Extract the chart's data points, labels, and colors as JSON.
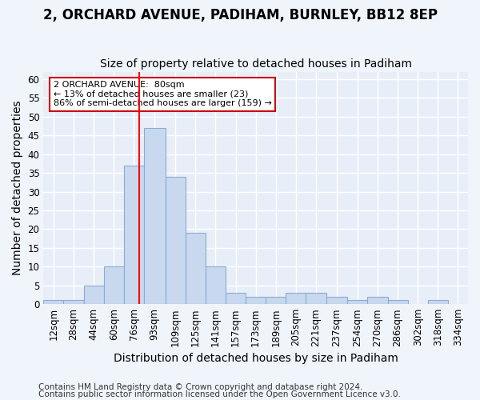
{
  "title": "2, ORCHARD AVENUE, PADIHAM, BURNLEY, BB12 8EP",
  "subtitle": "Size of property relative to detached houses in Padiham",
  "xlabel": "Distribution of detached houses by size in Padiham",
  "ylabel": "Number of detached properties",
  "bin_labels": [
    "12sqm",
    "28sqm",
    "44sqm",
    "60sqm",
    "76sqm",
    "93sqm",
    "109sqm",
    "125sqm",
    "141sqm",
    "157sqm",
    "173sqm",
    "189sqm",
    "205sqm",
    "221sqm",
    "237sqm",
    "254sqm",
    "270sqm",
    "286sqm",
    "302sqm",
    "318sqm",
    "334sqm"
  ],
  "bin_edges": [
    4,
    20,
    36,
    52,
    68,
    84,
    101,
    117,
    133,
    149,
    165,
    181,
    197,
    213,
    229,
    246,
    262,
    278,
    294,
    310,
    326,
    342
  ],
  "counts": [
    1,
    1,
    5,
    10,
    37,
    47,
    34,
    19,
    10,
    3,
    2,
    2,
    3,
    3,
    2,
    1,
    2,
    1,
    0,
    1,
    0
  ],
  "bar_color": "#c8d8ee",
  "bar_edge_color": "#8aadd4",
  "red_line_x": 80,
  "ylim": [
    0,
    62
  ],
  "yticks": [
    0,
    5,
    10,
    15,
    20,
    25,
    30,
    35,
    40,
    45,
    50,
    55,
    60
  ],
  "annotation_text": "2 ORCHARD AVENUE:  80sqm\n← 13% of detached houses are smaller (23)\n86% of semi-detached houses are larger (159) →",
  "annotation_box_color": "#ffffff",
  "annotation_box_edge": "#cc0000",
  "footer1": "Contains HM Land Registry data © Crown copyright and database right 2024.",
  "footer2": "Contains public sector information licensed under the Open Government Licence v3.0.",
  "bg_color": "#f0f4fb",
  "plot_bg_color": "#e8eef8",
  "grid_color": "#ffffff",
  "title_fontsize": 12,
  "subtitle_fontsize": 10,
  "axis_label_fontsize": 10,
  "tick_fontsize": 8.5,
  "footer_fontsize": 7.5
}
